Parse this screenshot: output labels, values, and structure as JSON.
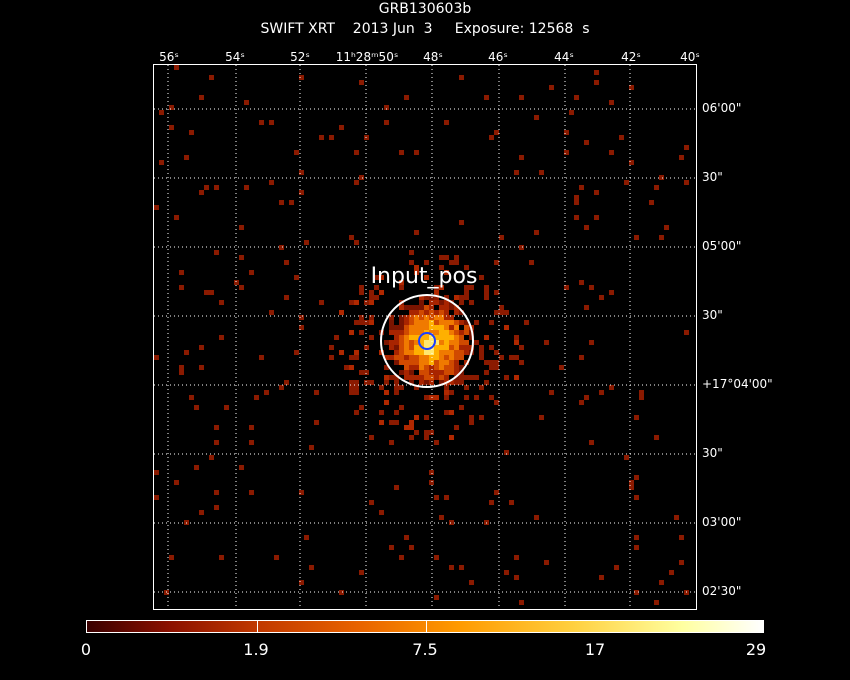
{
  "header": {
    "object": "GRB130603b",
    "subtitle": "SWIFT XRT    2013 Jun  3     Exposure: 12568  s"
  },
  "ra_ticks": [
    "56ˢ",
    "54ˢ",
    "52ˢ",
    "11ʰ28ᵐ50ˢ",
    "48ˢ",
    "46ˢ",
    "44ˢ",
    "42ˢ",
    "40ˢ"
  ],
  "dec_ticks": [
    "06'00\"",
    "30\"",
    "05'00\"",
    "30\"",
    "+17°04'00\"",
    "30\"",
    "03'00\"",
    "02'30\""
  ],
  "marker_label": "Input_pos",
  "colorbar": {
    "labels": [
      "0",
      "1.9",
      "7.5",
      "17",
      "29"
    ]
  },
  "colors": {
    "background": "#000000",
    "grid": "#ffffff",
    "circle_large": "#ffffff",
    "circle_small": "#1a3fff",
    "dim_counts": "#8b1a00"
  }
}
